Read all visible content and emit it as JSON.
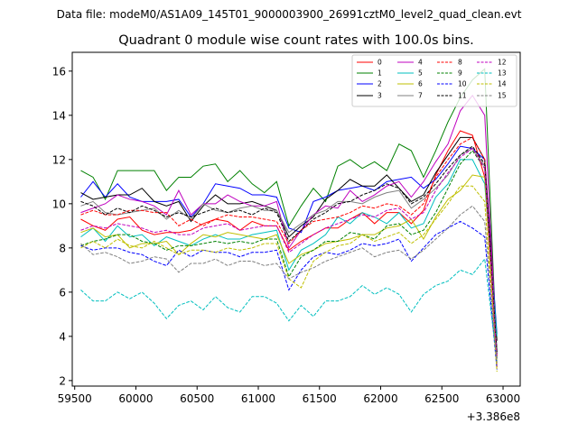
{
  "header": {
    "data_file": "Data file: modeM0/AS1A09_145T01_9000003900_26991cztM0_level2_quad_clean.evt",
    "title": "Quadrant 0 module wise count rates with 100.0s bins."
  },
  "chart_data": {
    "type": "line",
    "title": "Quadrant 0 module wise count rates with 100.0s bins.",
    "xlabel": "",
    "ylabel": "",
    "x_offset_label": "+3.386e8",
    "xlim": [
      59480,
      63140
    ],
    "ylim": [
      1.75,
      16.85
    ],
    "xticks": [
      59500,
      60000,
      60500,
      61000,
      61500,
      62000,
      62500,
      63000
    ],
    "xtick_labels": [
      "59500",
      "60000",
      "60500",
      "61000",
      "61500",
      "62000",
      "62500",
      "63000"
    ],
    "yticks": [
      2,
      4,
      6,
      8,
      10,
      12,
      14,
      16
    ],
    "ytick_labels": [
      "2",
      "4",
      "6",
      "8",
      "10",
      "12",
      "14",
      "16"
    ],
    "grid": false,
    "legend_position": "top-right",
    "legend_columns": 4,
    "x": [
      59550,
      59650,
      59750,
      59850,
      59950,
      60050,
      60150,
      60250,
      60350,
      60450,
      60550,
      60650,
      60750,
      60850,
      60950,
      61050,
      61150,
      61250,
      61350,
      61450,
      61550,
      61650,
      61750,
      61850,
      61950,
      62050,
      62150,
      62250,
      62350,
      62450,
      62550,
      62650,
      62750,
      62850,
      62950
    ],
    "series": [
      {
        "name": "0",
        "color": "#ff0000",
        "dashed": false,
        "values": [
          9.3,
          9.0,
          8.8,
          9.3,
          9.4,
          8.8,
          8.6,
          8.7,
          8.7,
          8.8,
          9.1,
          9.3,
          9.2,
          8.8,
          9.2,
          9.0,
          9.0,
          7.9,
          8.3,
          8.6,
          8.9,
          8.9,
          9.3,
          9.6,
          9.1,
          9.6,
          9.6,
          9.1,
          9.7,
          11.3,
          12.4,
          13.3,
          13.1,
          11.2,
          2.6
        ]
      },
      {
        "name": "1",
        "color": "#008000",
        "dashed": false,
        "values": [
          11.5,
          11.2,
          10.2,
          11.5,
          11.5,
          11.5,
          11.5,
          10.6,
          11.2,
          11.2,
          11.7,
          11.8,
          11.0,
          11.5,
          10.9,
          10.5,
          11.0,
          9.0,
          9.9,
          10.7,
          10.1,
          11.7,
          12.0,
          11.6,
          11.9,
          11.5,
          12.7,
          12.4,
          11.2,
          12.4,
          13.7,
          14.8,
          15.6,
          16.1,
          3.0
        ]
      },
      {
        "name": "2",
        "color": "#0000ff",
        "dashed": false,
        "values": [
          10.3,
          11.0,
          10.3,
          10.9,
          10.3,
          10.1,
          10.1,
          10.1,
          10.2,
          9.4,
          10.0,
          10.9,
          10.8,
          10.7,
          10.4,
          10.4,
          10.3,
          8.9,
          8.7,
          10.1,
          10.3,
          10.6,
          10.7,
          10.8,
          10.6,
          11.0,
          11.1,
          11.2,
          10.7,
          11.1,
          11.8,
          12.6,
          12.5,
          12.0,
          4.1
        ]
      },
      {
        "name": "3",
        "color": "#000000",
        "dashed": false,
        "values": [
          10.5,
          10.2,
          10.3,
          10.4,
          10.4,
          10.7,
          10.1,
          9.9,
          10.1,
          9.2,
          9.9,
          10.4,
          10.0,
          10.0,
          10.1,
          9.9,
          9.7,
          8.5,
          9.0,
          9.4,
          10.2,
          10.6,
          11.1,
          10.8,
          10.8,
          11.3,
          10.7,
          10.1,
          10.4,
          11.4,
          12.2,
          13.0,
          13.0,
          12.0,
          3.8
        ]
      },
      {
        "name": "4",
        "color": "#bf00bf",
        "dashed": false,
        "values": [
          9.6,
          9.8,
          10.0,
          10.4,
          10.2,
          10.1,
          9.9,
          9.5,
          10.6,
          9.5,
          10.0,
          10.0,
          10.4,
          10.1,
          9.9,
          9.9,
          10.1,
          8.0,
          8.8,
          9.5,
          9.9,
          9.8,
          10.6,
          10.1,
          10.4,
          10.8,
          11.0,
          10.3,
          11.0,
          11.9,
          12.7,
          14.2,
          14.9,
          14.0,
          3.2
        ]
      },
      {
        "name": "5",
        "color": "#00bfbf",
        "dashed": false,
        "values": [
          8.5,
          8.9,
          8.3,
          9.0,
          8.5,
          8.6,
          8.1,
          8.5,
          8.3,
          8.1,
          8.4,
          8.6,
          8.4,
          8.4,
          8.6,
          8.7,
          8.8,
          7.0,
          7.9,
          8.2,
          8.6,
          9.4,
          9.1,
          9.6,
          9.4,
          9.1,
          9.6,
          8.9,
          9.1,
          10.3,
          10.9,
          12.0,
          12.0,
          10.9,
          4.0
        ]
      },
      {
        "name": "6",
        "color": "#bfbf00",
        "dashed": false,
        "values": [
          8.7,
          8.9,
          8.5,
          8.6,
          8.0,
          8.2,
          8.2,
          8.3,
          7.7,
          8.2,
          8.6,
          8.5,
          8.7,
          8.6,
          8.5,
          8.4,
          8.6,
          7.3,
          7.7,
          7.9,
          8.2,
          8.3,
          8.4,
          8.6,
          8.6,
          8.9,
          9.0,
          9.3,
          8.4,
          9.4,
          10.2,
          10.6,
          11.3,
          11.2,
          2.8
        ]
      },
      {
        "name": "7",
        "color": "#808080",
        "dashed": false,
        "values": [
          9.9,
          10.1,
          9.6,
          9.5,
          9.6,
          9.7,
          9.8,
          9.3,
          9.7,
          9.3,
          10.0,
          9.7,
          9.6,
          9.8,
          9.9,
          9.7,
          9.7,
          8.7,
          9.1,
          9.5,
          9.7,
          10.1,
          10.1,
          10.0,
          10.3,
          10.5,
          10.6,
          9.8,
          10.2,
          10.7,
          11.3,
          12.2,
          12.5,
          11.7,
          3.4
        ]
      },
      {
        "name": "8",
        "color": "#ff0000",
        "dashed": true,
        "values": [
          9.5,
          9.7,
          9.5,
          9.5,
          9.7,
          9.7,
          9.6,
          9.6,
          9.0,
          9.3,
          9.0,
          9.3,
          9.5,
          9.4,
          9.4,
          9.3,
          9.2,
          8.2,
          8.8,
          9.2,
          9.3,
          9.4,
          9.6,
          9.9,
          9.8,
          10.0,
          9.9,
          9.5,
          10.0,
          11.2,
          12.0,
          12.7,
          13.0,
          12.0,
          3.1
        ]
      },
      {
        "name": "9",
        "color": "#008000",
        "dashed": true,
        "values": [
          8.1,
          8.3,
          8.4,
          8.6,
          8.6,
          8.3,
          8.2,
          7.9,
          8.1,
          8.1,
          8.2,
          8.3,
          8.2,
          8.3,
          8.2,
          8.4,
          8.4,
          6.7,
          7.6,
          7.9,
          8.3,
          8.3,
          8.7,
          8.6,
          8.4,
          9.0,
          9.1,
          8.6,
          8.8,
          9.6,
          10.7,
          11.8,
          12.4,
          11.6,
          3.2
        ]
      },
      {
        "name": "10",
        "color": "#0000ff",
        "dashed": true,
        "values": [
          8.1,
          7.9,
          8.0,
          8.0,
          7.8,
          7.7,
          7.4,
          7.2,
          7.9,
          7.6,
          7.9,
          7.8,
          7.8,
          7.6,
          7.8,
          7.8,
          7.9,
          6.1,
          7.0,
          7.6,
          7.8,
          7.7,
          7.9,
          8.2,
          8.1,
          8.2,
          8.4,
          7.4,
          8.0,
          8.6,
          8.9,
          9.2,
          8.9,
          8.5,
          2.5
        ]
      },
      {
        "name": "11",
        "color": "#000000",
        "dashed": true,
        "values": [
          10.1,
          9.9,
          9.5,
          9.8,
          9.6,
          9.9,
          9.7,
          9.4,
          9.6,
          9.4,
          9.6,
          9.8,
          9.6,
          9.7,
          9.5,
          9.8,
          9.6,
          8.3,
          8.8,
          9.3,
          9.6,
          10.0,
          10.1,
          10.4,
          10.6,
          10.9,
          10.7,
          10.0,
          10.3,
          10.9,
          11.6,
          12.2,
          12.6,
          11.8,
          3.3
        ]
      },
      {
        "name": "12",
        "color": "#bf00bf",
        "dashed": true,
        "values": [
          8.8,
          9.0,
          8.9,
          9.1,
          9.0,
          8.9,
          8.7,
          8.8,
          8.6,
          8.6,
          8.9,
          9.0,
          9.1,
          8.8,
          8.9,
          9.0,
          9.0,
          7.8,
          8.2,
          8.6,
          8.9,
          9.1,
          9.3,
          9.5,
          9.4,
          9.7,
          9.8,
          9.3,
          9.6,
          10.6,
          11.4,
          12.1,
          12.5,
          11.6,
          3.0
        ]
      },
      {
        "name": "13",
        "color": "#00bfbf",
        "dashed": true,
        "values": [
          6.1,
          5.6,
          5.6,
          6.0,
          5.7,
          6.0,
          5.5,
          4.8,
          5.4,
          5.6,
          5.2,
          5.8,
          5.3,
          5.1,
          5.8,
          5.8,
          5.5,
          4.7,
          5.4,
          4.9,
          5.6,
          5.6,
          5.8,
          6.3,
          5.9,
          6.2,
          5.9,
          5.1,
          5.9,
          6.3,
          6.5,
          7.0,
          6.8,
          7.5,
          2.9
        ]
      },
      {
        "name": "14",
        "color": "#bfbf00",
        "dashed": true,
        "values": [
          8.0,
          8.3,
          8.0,
          8.4,
          8.1,
          8.0,
          8.3,
          8.0,
          7.7,
          7.9,
          7.9,
          7.8,
          8.0,
          7.9,
          8.0,
          8.2,
          8.2,
          6.6,
          6.2,
          7.4,
          7.8,
          8.1,
          8.2,
          8.6,
          8.3,
          8.5,
          8.7,
          8.2,
          8.6,
          9.3,
          10.0,
          10.8,
          10.8,
          10.1,
          2.4
        ]
      },
      {
        "name": "15",
        "color": "#808080",
        "dashed": true,
        "values": [
          8.2,
          7.7,
          7.8,
          7.6,
          7.3,
          7.4,
          7.6,
          7.5,
          6.9,
          7.3,
          7.3,
          7.5,
          7.2,
          7.4,
          7.4,
          7.2,
          7.3,
          6.6,
          6.9,
          7.1,
          7.4,
          7.6,
          7.8,
          8.0,
          7.6,
          7.8,
          7.9,
          7.5,
          7.9,
          8.4,
          8.9,
          9.5,
          9.9,
          9.2,
          2.8
        ]
      }
    ]
  }
}
